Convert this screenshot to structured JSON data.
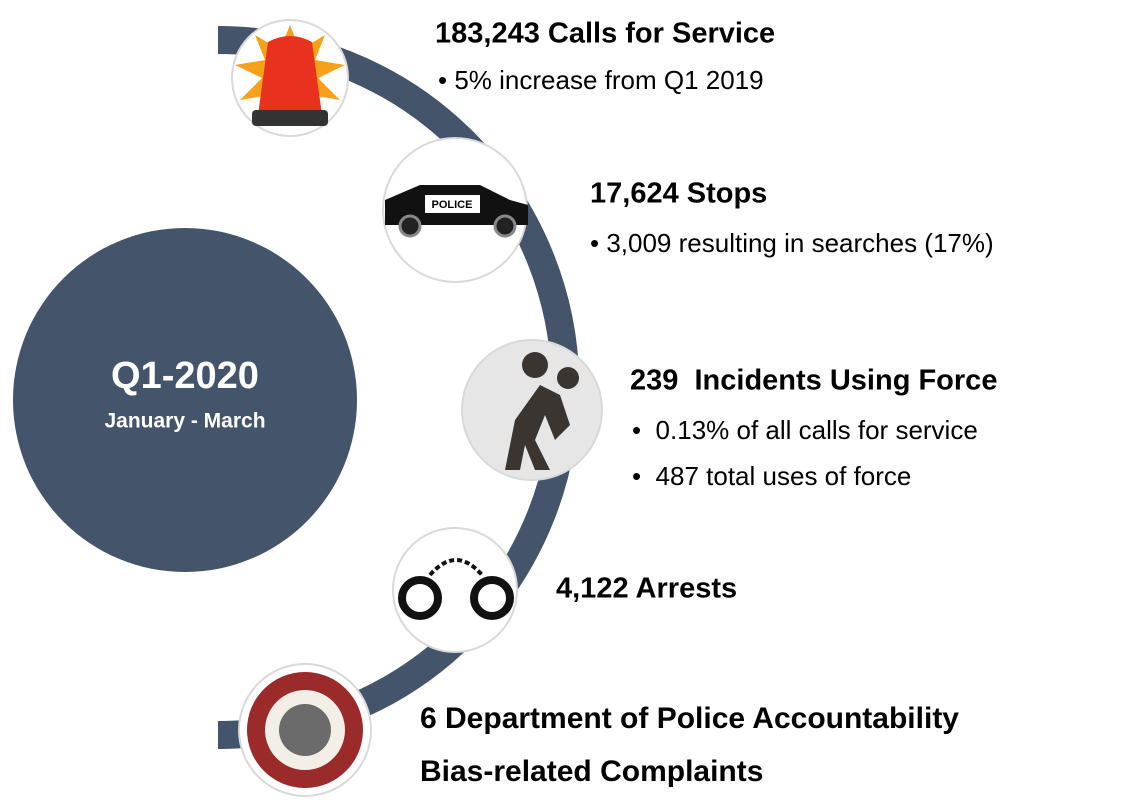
{
  "period": {
    "title": "Q1-2020",
    "subtitle": "January - March"
  },
  "items": [
    {
      "heading": "183,243 Calls for Service",
      "bullets": [
        "• 5% increase from Q1 2019"
      ]
    },
    {
      "heading": "17,624 Stops",
      "bullets": [
        "• 3,009 resulting in searches (17%)"
      ]
    },
    {
      "heading": "239  Incidents Using Force",
      "bullets": [
        "•  0.13% of all calls for service",
        "•  487 total uses of force"
      ]
    },
    {
      "heading": "4,122 Arrests",
      "bullets": []
    },
    {
      "heading": "6 Department of Police Accountability",
      "bullets": [
        "Bias-related Complaints"
      ]
    }
  ]
}
